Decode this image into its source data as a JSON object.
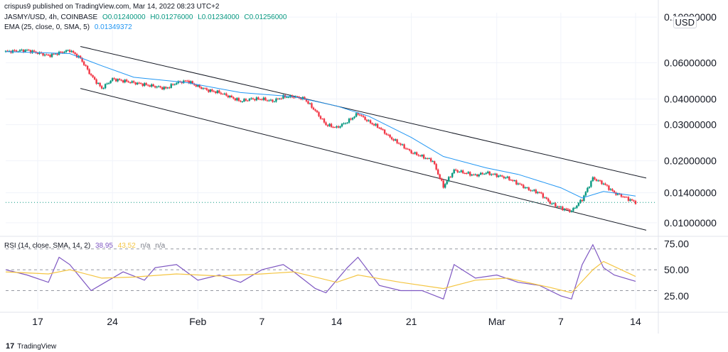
{
  "header": {
    "publisher": "crispus9 published on TradingView.com, Mar 14, 2022 08:23 UTC+2",
    "symbol": "JASMY/USD, 4h, COINBASE",
    "open": "O0.01240000",
    "high": "H0.01276000",
    "low": "L0.01234000",
    "close": "C0.01256000",
    "ema_label": "EMA (25, close, 0, SMA, 5)",
    "ema_value": "0.01349372",
    "rsi_label": "RSI (14, close, SMA, 14, 2)",
    "rsi_value": "38.95",
    "rsi_sma_value": "43.52",
    "na1": "n/a",
    "na2": "n/a",
    "currency": "USD"
  },
  "footer": {
    "logo": "17",
    "brand": "TradingView"
  },
  "colors": {
    "up": "#089981",
    "down": "#f23645",
    "ema": "#2196f3",
    "rsi": "#7e57c2",
    "rsi_sma": "#f4c542",
    "channel": "#131722"
  },
  "chart_data": [
    {
      "type": "candlestick",
      "log_scale": true,
      "ylim": [
        0.0088,
        0.105
      ],
      "y_ticks": [
        0.1,
        0.06,
        0.04,
        0.03,
        0.02,
        0.014,
        0.01
      ],
      "y_tick_labels": [
        "0.10000000",
        "0.06000000",
        "0.04000000",
        "0.03000000",
        "0.02000000",
        "0.01400000",
        "0.01000000"
      ],
      "x_tick_labels": [
        "17",
        "24",
        "Feb",
        "7",
        "14",
        "21",
        "Mar",
        "7",
        "14"
      ],
      "x_tick_dates": [
        "2022-01-17",
        "2022-01-24",
        "2022-02-01",
        "2022-02-07",
        "2022-02-14",
        "2022-02-21",
        "2022-03-01",
        "2022-03-07",
        "2022-03-14"
      ],
      "x_range": [
        "2022-01-14",
        "2022-03-16"
      ],
      "last_close": 0.01256,
      "close_path": [
        [
          "2022-01-14",
          0.068
        ],
        [
          "2022-01-16",
          0.069
        ],
        [
          "2022-01-17",
          0.067
        ],
        [
          "2022-01-18",
          0.065
        ],
        [
          "2022-01-19",
          0.067
        ],
        [
          "2022-01-20",
          0.069
        ],
        [
          "2022-01-21",
          0.063
        ],
        [
          "2022-01-22",
          0.052
        ],
        [
          "2022-01-23",
          0.045
        ],
        [
          "2022-01-24",
          0.05
        ],
        [
          "2022-01-25",
          0.049
        ],
        [
          "2022-01-26",
          0.048
        ],
        [
          "2022-01-27",
          0.047
        ],
        [
          "2022-01-28",
          0.046
        ],
        [
          "2022-01-29",
          0.045
        ],
        [
          "2022-01-30",
          0.048
        ],
        [
          "2022-01-31",
          0.049
        ],
        [
          "2022-02-01",
          0.046
        ],
        [
          "2022-02-02",
          0.044
        ],
        [
          "2022-02-03",
          0.043
        ],
        [
          "2022-02-04",
          0.041
        ],
        [
          "2022-02-05",
          0.039
        ],
        [
          "2022-02-06",
          0.04
        ],
        [
          "2022-02-07",
          0.04
        ],
        [
          "2022-02-08",
          0.039
        ],
        [
          "2022-02-09",
          0.041
        ],
        [
          "2022-02-10",
          0.041
        ],
        [
          "2022-02-11",
          0.04
        ],
        [
          "2022-02-12",
          0.035
        ],
        [
          "2022-02-13",
          0.03
        ],
        [
          "2022-02-14",
          0.029
        ],
        [
          "2022-02-15",
          0.031
        ],
        [
          "2022-02-16",
          0.034
        ],
        [
          "2022-02-17",
          0.031
        ],
        [
          "2022-02-18",
          0.029
        ],
        [
          "2022-02-19",
          0.026
        ],
        [
          "2022-02-20",
          0.024
        ],
        [
          "2022-02-21",
          0.022
        ],
        [
          "2022-02-22",
          0.021
        ],
        [
          "2022-02-23",
          0.02
        ],
        [
          "2022-02-24",
          0.015
        ],
        [
          "2022-02-25",
          0.018
        ],
        [
          "2022-02-26",
          0.0175
        ],
        [
          "2022-02-27",
          0.017
        ],
        [
          "2022-02-28",
          0.0175
        ],
        [
          "2022-03-01",
          0.017
        ],
        [
          "2022-03-02",
          0.0165
        ],
        [
          "2022-03-03",
          0.0155
        ],
        [
          "2022-03-04",
          0.0145
        ],
        [
          "2022-03-05",
          0.014
        ],
        [
          "2022-03-06",
          0.0125
        ],
        [
          "2022-03-07",
          0.0118
        ],
        [
          "2022-03-08",
          0.0114
        ],
        [
          "2022-03-09",
          0.013
        ],
        [
          "2022-03-10",
          0.0165
        ],
        [
          "2022-03-11",
          0.0155
        ],
        [
          "2022-03-12",
          0.014
        ],
        [
          "2022-03-13",
          0.0133
        ],
        [
          "2022-03-14",
          0.01256
        ]
      ],
      "ema_path": [
        [
          "2022-01-14",
          0.068
        ],
        [
          "2022-01-20",
          0.0665
        ],
        [
          "2022-01-23",
          0.058
        ],
        [
          "2022-01-26",
          0.051
        ],
        [
          "2022-01-31",
          0.048
        ],
        [
          "2022-02-05",
          0.043
        ],
        [
          "2022-02-10",
          0.041
        ],
        [
          "2022-02-14",
          0.037
        ],
        [
          "2022-02-17",
          0.033
        ],
        [
          "2022-02-21",
          0.026
        ],
        [
          "2022-02-24",
          0.021
        ],
        [
          "2022-02-28",
          0.0185
        ],
        [
          "2022-03-03",
          0.0172
        ],
        [
          "2022-03-07",
          0.0148
        ],
        [
          "2022-03-09",
          0.0132
        ],
        [
          "2022-03-11",
          0.0142
        ],
        [
          "2022-03-14",
          0.01349
        ]
      ],
      "channel": {
        "upper": [
          [
            "2022-01-21",
            0.072
          ],
          [
            "2022-03-15",
            0.0165
          ]
        ],
        "lower": [
          [
            "2022-01-21",
            0.045
          ],
          [
            "2022-03-15",
            0.0092
          ]
        ]
      },
      "price_line": 0.01256
    },
    {
      "type": "line",
      "title": "RSI (14, close, SMA, 14, 2)",
      "ylim": [
        12,
        80
      ],
      "y_ticks": [
        75,
        50,
        25
      ],
      "y_tick_labels": [
        "75.00",
        "50.00",
        "25.00"
      ],
      "dashed_levels": [
        70,
        50,
        30
      ],
      "series": [
        {
          "name": "RSI",
          "points": [
            [
              "2022-01-14",
              50
            ],
            [
              "2022-01-16",
              45
            ],
            [
              "2022-01-18",
              38
            ],
            [
              "2022-01-19",
              62
            ],
            [
              "2022-01-20",
              55
            ],
            [
              "2022-01-22",
              30
            ],
            [
              "2022-01-23",
              36
            ],
            [
              "2022-01-25",
              48
            ],
            [
              "2022-01-27",
              40
            ],
            [
              "2022-01-28",
              52
            ],
            [
              "2022-01-30",
              55
            ],
            [
              "2022-02-01",
              40
            ],
            [
              "2022-02-03",
              45
            ],
            [
              "2022-02-05",
              38
            ],
            [
              "2022-02-07",
              50
            ],
            [
              "2022-02-09",
              55
            ],
            [
              "2022-02-10",
              48
            ],
            [
              "2022-02-12",
              32
            ],
            [
              "2022-02-13",
              28
            ],
            [
              "2022-02-15",
              52
            ],
            [
              "2022-02-16",
              62
            ],
            [
              "2022-02-18",
              35
            ],
            [
              "2022-02-20",
              30
            ],
            [
              "2022-02-22",
              30
            ],
            [
              "2022-02-24",
              22
            ],
            [
              "2022-02-25",
              55
            ],
            [
              "2022-02-27",
              42
            ],
            [
              "2022-03-01",
              45
            ],
            [
              "2022-03-03",
              38
            ],
            [
              "2022-03-05",
              35
            ],
            [
              "2022-03-07",
              25
            ],
            [
              "2022-03-08",
              22
            ],
            [
              "2022-03-09",
              55
            ],
            [
              "2022-03-10",
              74
            ],
            [
              "2022-03-11",
              52
            ],
            [
              "2022-03-12",
              45
            ],
            [
              "2022-03-14",
              38.95
            ]
          ]
        },
        {
          "name": "RSI SMA",
          "points": [
            [
              "2022-01-14",
              48
            ],
            [
              "2022-01-18",
              46
            ],
            [
              "2022-01-20",
              50
            ],
            [
              "2022-01-23",
              42
            ],
            [
              "2022-01-26",
              43
            ],
            [
              "2022-01-30",
              46
            ],
            [
              "2022-02-03",
              44
            ],
            [
              "2022-02-07",
              46
            ],
            [
              "2022-02-10",
              48
            ],
            [
              "2022-02-14",
              38
            ],
            [
              "2022-02-16",
              45
            ],
            [
              "2022-02-20",
              38
            ],
            [
              "2022-02-24",
              32
            ],
            [
              "2022-02-27",
              40
            ],
            [
              "2022-03-02",
              42
            ],
            [
              "2022-03-06",
              33
            ],
            [
              "2022-03-08",
              28
            ],
            [
              "2022-03-10",
              50
            ],
            [
              "2022-03-11",
              58
            ],
            [
              "2022-03-14",
              43.52
            ]
          ]
        }
      ]
    }
  ]
}
